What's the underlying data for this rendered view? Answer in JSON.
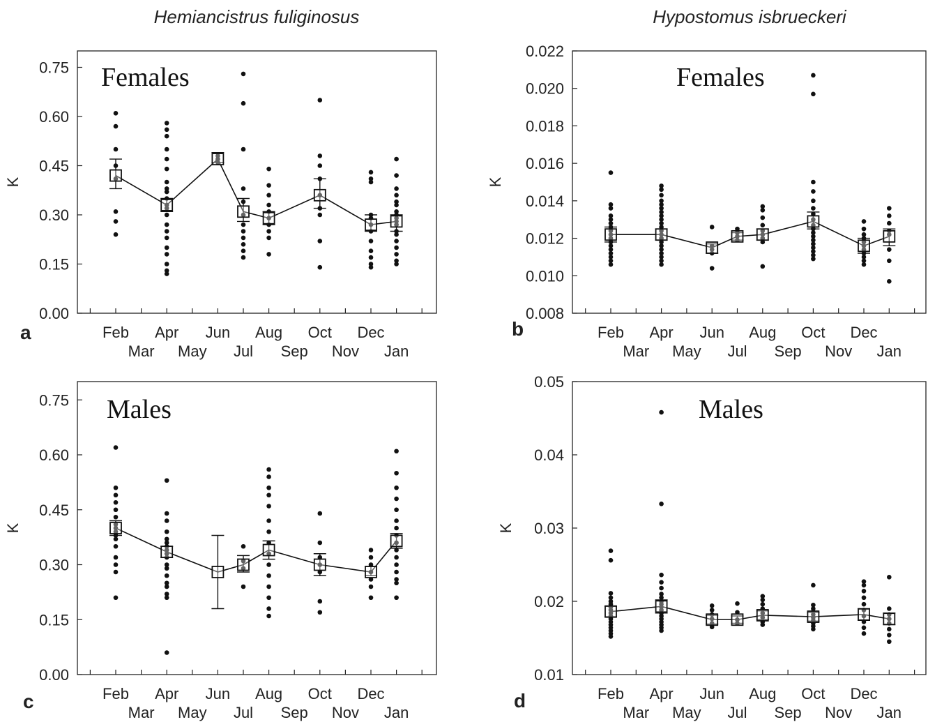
{
  "figure": {
    "col_titles": [
      "Hemiancistrus fuliginosus",
      "Hypostomus isbrueckeri"
    ]
  },
  "chart_data": [
    {
      "panel": "a",
      "type": "scatter",
      "annotation": "Females",
      "ylabel": "K",
      "ylim": [
        0,
        0.8
      ],
      "yticks": [
        "0.00",
        "0.15",
        "0.30",
        "0.45",
        "0.60",
        "0.75"
      ],
      "x_labels_upper": [
        "Feb",
        "Apr",
        "Jun",
        "Aug",
        "Oct",
        "Dec"
      ],
      "x_labels_lower": [
        "Mar",
        "May",
        "Jul",
        "Sep",
        "Nov",
        "Jan"
      ],
      "months": [
        "Feb",
        "Apr",
        "Jun",
        "Jul",
        "Aug",
        "Oct",
        "Dec",
        "Jan"
      ],
      "means": [
        0.42,
        0.33,
        0.47,
        0.31,
        0.29,
        0.36,
        0.27,
        0.28
      ],
      "error": [
        [
          0.38,
          0.47
        ],
        [
          0.31,
          0.35
        ],
        [
          0.46,
          0.49
        ],
        [
          0.28,
          0.35
        ],
        [
          0.27,
          0.31
        ],
        [
          0.32,
          0.41
        ],
        [
          0.25,
          0.3
        ],
        [
          0.25,
          0.3
        ]
      ],
      "points": [
        [
          0.61,
          0.57,
          0.5,
          0.45,
          0.41,
          0.31,
          0.28,
          0.24
        ],
        [
          0.58,
          0.56,
          0.54,
          0.5,
          0.47,
          0.44,
          0.4,
          0.38,
          0.37,
          0.35,
          0.33,
          0.32,
          0.3,
          0.27,
          0.25,
          0.23,
          0.2,
          0.18,
          0.15,
          0.13,
          0.12
        ],
        [
          0.48,
          0.47,
          0.46
        ],
        [
          0.73,
          0.64,
          0.5,
          0.38,
          0.34,
          0.3,
          0.27,
          0.25,
          0.23,
          0.21,
          0.19,
          0.17
        ],
        [
          0.44,
          0.39,
          0.36,
          0.33,
          0.31,
          0.29,
          0.27,
          0.25,
          0.23,
          0.18
        ],
        [
          0.65,
          0.48,
          0.45,
          0.41,
          0.36,
          0.32,
          0.3,
          0.22,
          0.14
        ],
        [
          0.43,
          0.41,
          0.4,
          0.3,
          0.29,
          0.27,
          0.25,
          0.22,
          0.19,
          0.17,
          0.15,
          0.14
        ],
        [
          0.47,
          0.42,
          0.38,
          0.36,
          0.34,
          0.33,
          0.31,
          0.3,
          0.29,
          0.28,
          0.27,
          0.25,
          0.24,
          0.22,
          0.2,
          0.18,
          0.16,
          0.15
        ]
      ]
    },
    {
      "panel": "b",
      "type": "scatter",
      "annotation": "Females",
      "ylabel": "K",
      "ylim": [
        0.008,
        0.022
      ],
      "yticks": [
        "0.008",
        "0.010",
        "0.012",
        "0.014",
        "0.016",
        "0.018",
        "0.020",
        "0.022"
      ],
      "x_labels_upper": [
        "Feb",
        "Apr",
        "Jun",
        "Aug",
        "Oct",
        "Dec"
      ],
      "x_labels_lower": [
        "Mar",
        "May",
        "Jul",
        "Sep",
        "Nov",
        "Jan"
      ],
      "months": [
        "Feb",
        "Apr",
        "Jun",
        "Jul",
        "Aug",
        "Oct",
        "Dec",
        "Jan"
      ],
      "means": [
        0.0122,
        0.0122,
        0.0115,
        0.0121,
        0.0122,
        0.0129,
        0.0116,
        0.0121
      ],
      "error": [
        [
          0.0118,
          0.0126
        ],
        [
          0.0119,
          0.0125
        ],
        [
          0.0112,
          0.0117
        ],
        [
          0.0119,
          0.0123
        ],
        [
          0.0119,
          0.0125
        ],
        [
          0.0125,
          0.0134
        ],
        [
          0.0112,
          0.012
        ],
        [
          0.0116,
          0.0125
        ]
      ],
      "points": [
        [
          0.0155,
          0.0138,
          0.0136,
          0.0132,
          0.013,
          0.0128,
          0.0126,
          0.0124,
          0.0122,
          0.012,
          0.0118,
          0.0116,
          0.0114,
          0.0112,
          0.011,
          0.0108,
          0.0106
        ],
        [
          0.0148,
          0.0146,
          0.0143,
          0.014,
          0.0138,
          0.0136,
          0.0134,
          0.0132,
          0.013,
          0.0128,
          0.0126,
          0.0124,
          0.0122,
          0.012,
          0.0118,
          0.0116,
          0.0114,
          0.0112,
          0.011,
          0.0108,
          0.0106
        ],
        [
          0.0126,
          0.0116,
          0.0114,
          0.0112,
          0.0104
        ],
        [
          0.0125,
          0.0123,
          0.0121,
          0.0119
        ],
        [
          0.0137,
          0.0135,
          0.0131,
          0.0127,
          0.0124,
          0.0122,
          0.012,
          0.0118,
          0.0105
        ],
        [
          0.0207,
          0.0197,
          0.015,
          0.0145,
          0.014,
          0.0136,
          0.0133,
          0.013,
          0.0127,
          0.0125,
          0.0123,
          0.0121,
          0.0119,
          0.0117,
          0.0115,
          0.0113,
          0.0111,
          0.0109
        ],
        [
          0.0129,
          0.0125,
          0.0122,
          0.012,
          0.0118,
          0.0116,
          0.0114,
          0.0112,
          0.011,
          0.0108,
          0.0106
        ],
        [
          0.0136,
          0.0132,
          0.0128,
          0.0124,
          0.0122,
          0.0114,
          0.0108,
          0.0097
        ]
      ]
    },
    {
      "panel": "c",
      "type": "scatter",
      "annotation": "Males",
      "ylabel": "K",
      "ylim": [
        0,
        0.8
      ],
      "yticks": [
        "0.00",
        "0.15",
        "0.30",
        "0.45",
        "0.60",
        "0.75"
      ],
      "x_labels_upper": [
        "Feb",
        "Apr",
        "Jun",
        "Aug",
        "Oct",
        "Dec"
      ],
      "x_labels_lower": [
        "Mar",
        "May",
        "Jul",
        "Sep",
        "Nov",
        "Jan"
      ],
      "months": [
        "Feb",
        "Apr",
        "Jun",
        "Jul",
        "Aug",
        "Oct",
        "Dec",
        "Jan"
      ],
      "means": [
        0.4,
        0.335,
        0.28,
        0.3,
        0.34,
        0.3,
        0.28,
        0.365
      ],
      "error": [
        [
          0.38,
          0.42
        ],
        [
          0.32,
          0.35
        ],
        [
          0.18,
          0.38
        ],
        [
          0.28,
          0.325
        ],
        [
          0.315,
          0.365
        ],
        [
          0.27,
          0.33
        ],
        [
          0.27,
          0.295
        ],
        [
          0.345,
          0.385
        ]
      ],
      "points": [
        [
          0.62,
          0.51,
          0.49,
          0.47,
          0.45,
          0.43,
          0.41,
          0.4,
          0.39,
          0.38,
          0.37,
          0.35,
          0.32,
          0.3,
          0.28,
          0.21
        ],
        [
          0.53,
          0.44,
          0.42,
          0.39,
          0.37,
          0.36,
          0.35,
          0.34,
          0.33,
          0.32,
          0.3,
          0.29,
          0.27,
          0.25,
          0.24,
          0.22,
          0.21,
          0.06
        ],
        [],
        [
          0.35,
          0.31,
          0.29,
          0.24
        ],
        [
          0.56,
          0.54,
          0.51,
          0.49,
          0.46,
          0.42,
          0.39,
          0.36,
          0.33,
          0.3,
          0.27,
          0.24,
          0.21,
          0.18,
          0.16
        ],
        [
          0.44,
          0.36,
          0.32,
          0.3,
          0.28,
          0.2,
          0.17
        ],
        [
          0.34,
          0.32,
          0.3,
          0.28,
          0.26,
          0.24,
          0.21
        ],
        [
          0.61,
          0.55,
          0.51,
          0.48,
          0.45,
          0.42,
          0.4,
          0.38,
          0.36,
          0.34,
          0.32,
          0.3,
          0.28,
          0.26,
          0.25,
          0.21
        ]
      ]
    },
    {
      "panel": "d",
      "type": "scatter",
      "annotation": "Males",
      "ylabel": "K",
      "ylim": [
        0.01,
        0.05
      ],
      "yticks": [
        "0.01",
        "0.02",
        "0.03",
        "0.04",
        "0.05"
      ],
      "x_labels_upper": [
        "Feb",
        "Apr",
        "Jun",
        "Aug",
        "Oct",
        "Dec"
      ],
      "x_labels_lower": [
        "Mar",
        "May",
        "Jul",
        "Sep",
        "Nov",
        "Jan"
      ],
      "months": [
        "Feb",
        "Apr",
        "Jun",
        "Jul",
        "Aug",
        "Oct",
        "Dec",
        "Jan"
      ],
      "means": [
        0.0186,
        0.0193,
        0.0175,
        0.0175,
        0.0181,
        0.0179,
        0.0182,
        0.0176
      ],
      "error": [
        [
          0.0179,
          0.0193
        ],
        [
          0.0184,
          0.0202
        ],
        [
          0.0169,
          0.0181
        ],
        [
          0.017,
          0.018
        ],
        [
          0.0175,
          0.0187
        ],
        [
          0.0173,
          0.0185
        ],
        [
          0.0174,
          0.019
        ],
        [
          0.0168,
          0.0184
        ]
      ],
      "points": [
        [
          0.0269,
          0.0256,
          0.0211,
          0.0205,
          0.02,
          0.0196,
          0.0192,
          0.0188,
          0.0184,
          0.018,
          0.0176,
          0.0172,
          0.0168,
          0.0164,
          0.016,
          0.0156,
          0.0152
        ],
        [
          0.0458,
          0.0333,
          0.0236,
          0.0226,
          0.0218,
          0.021,
          0.0205,
          0.02,
          0.0196,
          0.0192,
          0.0188,
          0.0184,
          0.018,
          0.0176,
          0.0172,
          0.0168,
          0.0164,
          0.016
        ],
        [
          0.0194,
          0.0188,
          0.0182,
          0.0176,
          0.017,
          0.0165
        ],
        [
          0.0197,
          0.0185,
          0.0175,
          0.017
        ],
        [
          0.0207,
          0.0202,
          0.0196,
          0.019,
          0.0184,
          0.0178,
          0.0172,
          0.0168
        ],
        [
          0.0222,
          0.0195,
          0.019,
          0.0186,
          0.0182,
          0.0178,
          0.0174,
          0.017,
          0.0166,
          0.0162
        ],
        [
          0.0227,
          0.0222,
          0.0214,
          0.0205,
          0.0196,
          0.0188,
          0.018,
          0.0172,
          0.0164,
          0.0156
        ],
        [
          0.0233,
          0.019,
          0.0182,
          0.0176,
          0.017,
          0.0162,
          0.0154,
          0.0145
        ]
      ]
    }
  ]
}
